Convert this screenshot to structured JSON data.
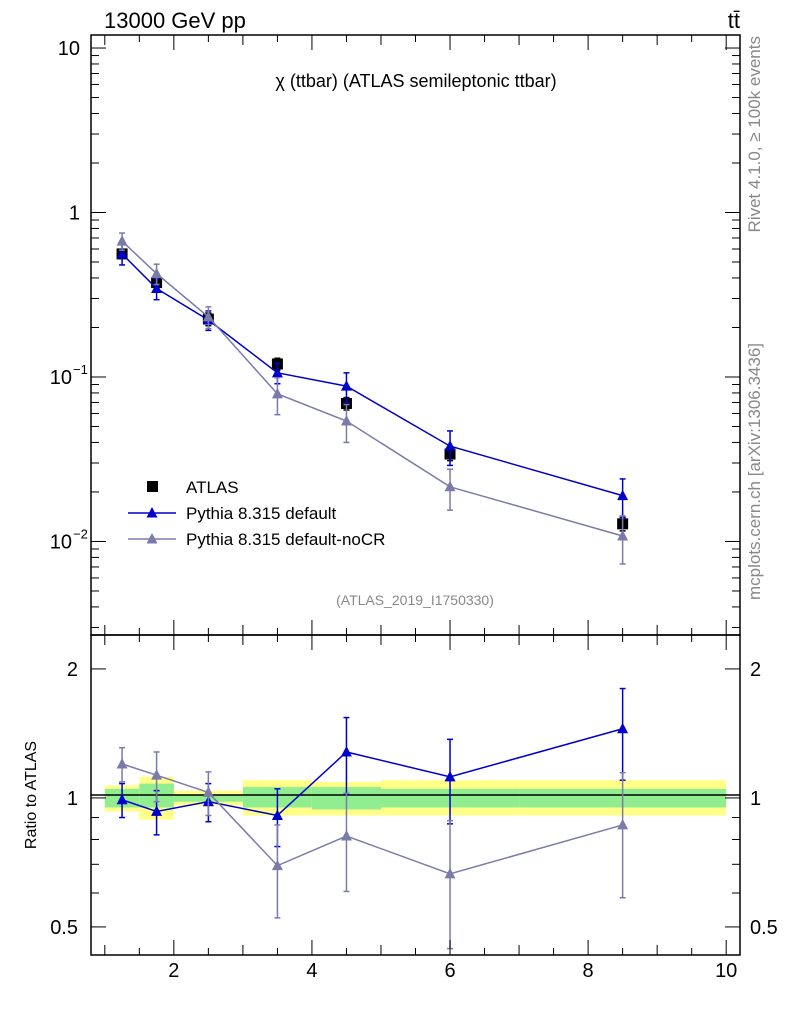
{
  "header": {
    "energy_label": "13000 GeV pp",
    "process_label": "tt̄"
  },
  "side_labels": {
    "rivet": "Rivet 4.1.0, ≥ 100k events",
    "mcplots": "mcplots.cern.ch [arXiv:1306.3436]"
  },
  "colors": {
    "data": "#000000",
    "default": "#0000cc",
    "nocr": "#7b7bab",
    "band_inner": "#90ee90",
    "band_outer": "#ffff88"
  },
  "chart_data": [
    {
      "type": "scatter",
      "panel": "main",
      "title": "χ (ttbar) (ATLAS semileptonic ttbar)",
      "analysis_label": "(ATLAS_2019_I1750330)",
      "xlabel": "",
      "ylabel": "",
      "yscale": "log",
      "xlim": [
        0.8,
        10.2
      ],
      "ylim": [
        0.0027,
        12
      ],
      "yticks": [
        {
          "value": 10,
          "label": "10"
        },
        {
          "value": 1,
          "label": "1"
        },
        {
          "value": 0.1,
          "label": "10",
          "exp": "−1"
        },
        {
          "value": 0.01,
          "label": "10",
          "exp": "−2"
        }
      ],
      "legend": {
        "placement": "bottom-left",
        "entries": [
          {
            "series": "ATLAS",
            "label": "ATLAS"
          },
          {
            "series": "default",
            "label": "Pythia 8.315 default"
          },
          {
            "series": "nocr",
            "label": "Pythia 8.315 default-noCR"
          }
        ]
      },
      "bins": [
        [
          1.0,
          1.5
        ],
        [
          1.5,
          2.0
        ],
        [
          2.0,
          3.0
        ],
        [
          3.0,
          4.0
        ],
        [
          4.0,
          5.0
        ],
        [
          5.0,
          7.0
        ],
        [
          7.0,
          10.0
        ]
      ],
      "series": [
        {
          "name": "ATLAS",
          "marker": "square",
          "x": [
            1.25,
            1.75,
            2.5,
            3.5,
            4.5,
            6.0,
            8.5
          ],
          "y": [
            0.56,
            0.375,
            0.225,
            0.12,
            0.069,
            0.034,
            0.0128
          ],
          "yerr": [
            0.03,
            0.02,
            0.02,
            0.01,
            0.006,
            0.003,
            0.0012
          ]
        },
        {
          "name": "default",
          "marker": "triangle",
          "line": true,
          "x": [
            1.25,
            1.75,
            2.5,
            3.5,
            4.5,
            6.0,
            8.5
          ],
          "y": [
            0.56,
            0.345,
            0.222,
            0.106,
            0.088,
            0.038,
            0.019
          ],
          "yerr": [
            0.08,
            0.05,
            0.03,
            0.015,
            0.018,
            0.009,
            0.005
          ]
        },
        {
          "name": "nocr",
          "marker": "triangle",
          "line": true,
          "x": [
            1.25,
            1.75,
            2.5,
            3.5,
            4.5,
            6.0,
            8.5
          ],
          "y": [
            0.67,
            0.425,
            0.232,
            0.079,
            0.054,
            0.0215,
            0.0108
          ],
          "yerr": [
            0.08,
            0.06,
            0.035,
            0.02,
            0.014,
            0.006,
            0.0035
          ]
        }
      ]
    },
    {
      "type": "scatter",
      "panel": "ratio",
      "ylabel": "Ratio to ATLAS",
      "yscale": "log",
      "xlim": [
        0.8,
        10.2
      ],
      "ylim": [
        0.43,
        2.4
      ],
      "yticks": [
        {
          "value": 2,
          "label": "2"
        },
        {
          "value": 1,
          "label": "1"
        },
        {
          "value": 0.5,
          "label": "0.5"
        }
      ],
      "xticks": [
        {
          "value": 2,
          "label": "2"
        },
        {
          "value": 4,
          "label": "4"
        },
        {
          "value": 6,
          "label": "6"
        },
        {
          "value": 8,
          "label": "8"
        },
        {
          "value": 10,
          "label": "10"
        }
      ],
      "bands": [
        {
          "x": [
            1.0,
            1.5
          ],
          "inner": [
            0.95,
            1.05
          ],
          "outer": [
            0.93,
            1.07
          ]
        },
        {
          "x": [
            1.5,
            2.0
          ],
          "inner": [
            0.95,
            1.08
          ],
          "outer": [
            0.89,
            1.12
          ]
        },
        {
          "x": [
            2.0,
            3.0
          ],
          "inner": [
            0.98,
            1.02
          ],
          "outer": [
            0.96,
            1.04
          ]
        },
        {
          "x": [
            3.0,
            4.0
          ],
          "inner": [
            0.95,
            1.06
          ],
          "outer": [
            0.91,
            1.1
          ]
        },
        {
          "x": [
            4.0,
            5.0
          ],
          "inner": [
            0.94,
            1.06
          ],
          "outer": [
            0.91,
            1.09
          ]
        },
        {
          "x": [
            5.0,
            7.0
          ],
          "inner": [
            0.95,
            1.05
          ],
          "outer": [
            0.91,
            1.1
          ]
        },
        {
          "x": [
            7.0,
            10.0
          ],
          "inner": [
            0.95,
            1.05
          ],
          "outer": [
            0.91,
            1.1
          ]
        }
      ],
      "series": [
        {
          "name": "default",
          "x": [
            1.25,
            1.75,
            2.5,
            3.5,
            4.5,
            6.0,
            8.5
          ],
          "y": [
            0.99,
            0.93,
            0.98,
            0.91,
            1.28,
            1.12,
            1.45
          ],
          "yerr": [
            0.09,
            0.11,
            0.1,
            0.14,
            0.26,
            0.25,
            0.35
          ]
        },
        {
          "name": "nocr",
          "x": [
            1.25,
            1.75,
            2.5,
            3.5,
            4.5,
            6.0,
            8.5
          ],
          "y": [
            1.2,
            1.13,
            1.03,
            0.695,
            0.815,
            0.665,
            0.865
          ],
          "yerr": [
            0.11,
            0.15,
            0.12,
            0.17,
            0.21,
            0.22,
            0.28
          ]
        }
      ]
    }
  ]
}
